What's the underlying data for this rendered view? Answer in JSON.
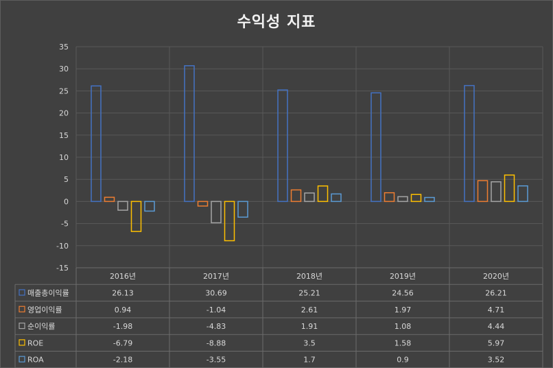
{
  "chart_data": {
    "type": "bar",
    "title": "수익성 지표",
    "categories": [
      "2016년",
      "2017년",
      "2018년",
      "2019년",
      "2020년"
    ],
    "ylim": [
      -15,
      35
    ],
    "yticks": [
      35,
      30,
      25,
      20,
      15,
      10,
      5,
      0,
      -5,
      -10,
      -15
    ],
    "grid": true,
    "legend": "data-table",
    "series": [
      {
        "name": "매출총이익률",
        "color": "#4472c4",
        "values": [
          26.13,
          30.69,
          25.21,
          24.56,
          26.21
        ]
      },
      {
        "name": "영업이익률",
        "color": "#ed7d31",
        "values": [
          0.94,
          -1.04,
          2.61,
          1.97,
          4.71
        ]
      },
      {
        "name": "순이익률",
        "color": "#a5a5a5",
        "values": [
          -1.98,
          -4.83,
          1.91,
          1.08,
          4.44
        ]
      },
      {
        "name": "ROE",
        "color": "#ffc000",
        "values": [
          -6.79,
          -8.88,
          3.5,
          1.58,
          5.97
        ]
      },
      {
        "name": "ROA",
        "color": "#5b9bd5",
        "values": [
          -2.18,
          -3.55,
          1.7,
          0.9,
          3.52
        ]
      }
    ]
  }
}
